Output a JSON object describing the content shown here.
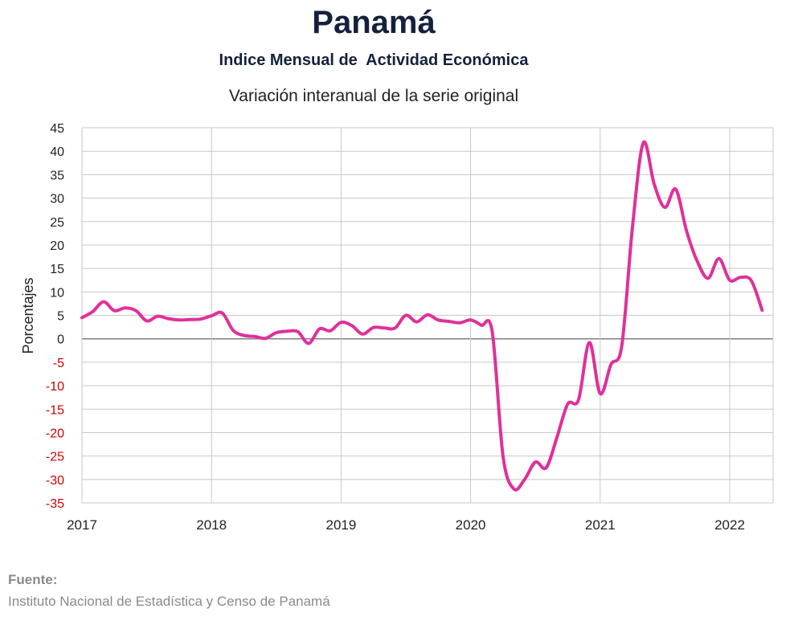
{
  "chart_data": {
    "type": "line",
    "title": "Panamá",
    "subtitle": "Indice Mensual de  Actividad Económica",
    "subtitle2": "Variación interanual de la serie original",
    "ylabel": "Porcentajes",
    "xlabel": "",
    "ylim": [
      -35,
      45
    ],
    "y_ticks": [
      45,
      40,
      35,
      30,
      25,
      20,
      15,
      10,
      5,
      0,
      -5,
      -10,
      -15,
      -20,
      -25,
      -30,
      -35
    ],
    "x_ticks": [
      "2017",
      "2018",
      "2019",
      "2020",
      "2021",
      "2022"
    ],
    "grid": true,
    "colors": {
      "line": "#e0309a",
      "negative_tick": "#cc0000",
      "grid": "#c8c8c8",
      "zero_line": "#808080"
    },
    "series": [
      {
        "x": [
          "2017-01",
          "2017-02",
          "2017-03",
          "2017-04",
          "2017-05",
          "2017-06",
          "2017-07",
          "2017-08",
          "2017-09",
          "2017-10",
          "2017-11",
          "2017-12",
          "2018-01",
          "2018-02",
          "2018-03",
          "2018-04",
          "2018-05",
          "2018-06",
          "2018-07",
          "2018-08",
          "2018-09",
          "2018-10",
          "2018-11",
          "2018-12",
          "2019-01",
          "2019-02",
          "2019-03",
          "2019-04",
          "2019-05",
          "2019-06",
          "2019-07",
          "2019-08",
          "2019-09",
          "2019-10",
          "2019-11",
          "2019-12",
          "2020-01",
          "2020-02",
          "2020-03",
          "2020-04",
          "2020-05",
          "2020-06",
          "2020-07",
          "2020-08",
          "2020-09",
          "2020-10",
          "2020-11",
          "2020-12",
          "2021-01",
          "2021-02",
          "2021-03",
          "2021-04",
          "2021-05",
          "2021-06",
          "2021-07",
          "2021-08",
          "2021-09",
          "2021-10",
          "2021-11",
          "2021-12",
          "2022-01",
          "2022-02",
          "2022-03",
          "2022-04"
        ],
        "values": [
          4.5,
          5.8,
          7.9,
          6.0,
          6.6,
          6.0,
          3.8,
          4.8,
          4.3,
          4.0,
          4.1,
          4.2,
          4.9,
          5.5,
          1.8,
          0.7,
          0.5,
          0.1,
          1.3,
          1.6,
          1.5,
          -1.0,
          2.1,
          1.7,
          3.5,
          2.8,
          1.0,
          2.4,
          2.3,
          2.3,
          5.0,
          3.6,
          5.1,
          4.0,
          3.7,
          3.4,
          4.0,
          2.9,
          1.5,
          -25.0,
          -32.0,
          -30.0,
          -26.3,
          -27.5,
          -21.0,
          -13.9,
          -13.0,
          -0.8,
          -11.7,
          -5.5,
          -1.5,
          24.0,
          41.8,
          33.0,
          28.0,
          31.9,
          23.0,
          16.5,
          12.9,
          17.1,
          12.5,
          13.1,
          12.4,
          6.1
        ]
      }
    ]
  },
  "source": {
    "label": "Fuente:",
    "text": "Instituto Nacional de Estadística y Censo de Panamá"
  }
}
